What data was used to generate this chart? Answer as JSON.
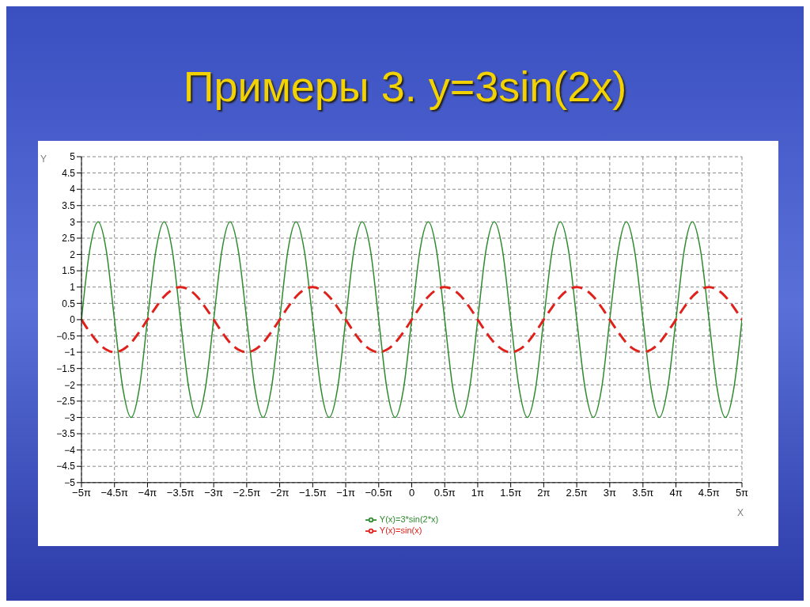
{
  "chart_data": {
    "type": "line",
    "title": "Примеры 3. y=3sin(2x)",
    "xlabel": "X",
    "ylabel": "Y",
    "x": [
      -15.71,
      -15.32,
      -14.92,
      -14.53,
      -14.14,
      -13.74,
      -13.35,
      -12.96,
      -12.57,
      -12.17,
      -11.78,
      -11.39,
      -11.0,
      -10.6,
      -10.21,
      -9.82,
      -9.42,
      -9.03,
      -8.64,
      -8.25,
      -7.85,
      -7.46,
      -7.07,
      -6.68,
      -6.28,
      -5.89,
      -5.5,
      -5.11,
      -4.71,
      -4.32,
      -3.93,
      -3.53,
      -3.14,
      -2.75,
      -2.36,
      -1.96,
      -1.57,
      -1.18,
      -0.79,
      -0.39,
      0,
      0.39,
      0.79,
      1.18,
      1.57,
      1.96,
      2.36,
      2.75,
      3.14,
      3.53,
      3.93,
      4.32,
      4.71,
      5.11,
      5.5,
      5.89,
      6.28,
      6.68,
      7.07,
      7.46,
      7.85,
      8.25,
      8.64,
      9.03,
      9.42,
      9.82,
      10.21,
      10.6,
      11.0,
      11.39,
      11.78,
      12.17,
      12.57,
      12.96,
      13.35,
      13.74,
      14.14,
      14.53,
      14.92,
      15.32,
      15.71
    ],
    "series": [
      {
        "name": "Y(x)=3*sin(2*x)",
        "color": "#2e8b2e",
        "line_style": "solid",
        "values": [
          0,
          2.12,
          3,
          2.12,
          0,
          -2.12,
          -3,
          -2.12,
          0,
          2.12,
          3,
          2.12,
          0,
          -2.12,
          -3,
          -2.12,
          0,
          2.12,
          3,
          2.12,
          0,
          -2.12,
          -3,
          -2.12,
          0,
          2.12,
          3,
          2.12,
          0,
          -2.12,
          -3,
          -2.12,
          0,
          2.12,
          3,
          2.12,
          0,
          -2.12,
          -3,
          -2.12,
          0,
          2.12,
          3,
          2.12,
          0,
          -2.12,
          -3,
          -2.12,
          0,
          2.12,
          3,
          2.12,
          0,
          -2.12,
          -3,
          -2.12,
          0,
          2.12,
          3,
          2.12,
          0,
          -2.12,
          -3,
          -2.12,
          0,
          2.12,
          3,
          2.12,
          0,
          -2.12,
          -3,
          -2.12,
          0,
          2.12,
          3,
          2.12,
          0,
          -2.12,
          -3,
          -2.12,
          0
        ]
      },
      {
        "name": "Y(x)=sin(x)",
        "color": "#e0201a",
        "line_style": "dashed",
        "values": [
          0,
          -0.38,
          -0.71,
          -0.92,
          -1,
          -0.92,
          -0.71,
          -0.38,
          0,
          0.38,
          0.71,
          0.92,
          1,
          0.92,
          0.71,
          0.38,
          0,
          -0.38,
          -0.71,
          -0.92,
          -1,
          -0.92,
          -0.71,
          -0.38,
          0,
          0.38,
          0.71,
          0.92,
          1,
          0.92,
          0.71,
          0.38,
          0,
          -0.38,
          -0.71,
          -0.92,
          -1,
          -0.92,
          -0.71,
          -0.38,
          0,
          0.38,
          0.71,
          0.92,
          1,
          0.92,
          0.71,
          0.38,
          0,
          -0.38,
          -0.71,
          -0.92,
          -1,
          -0.92,
          -0.71,
          -0.38,
          0,
          0.38,
          0.71,
          0.92,
          1,
          0.92,
          0.71,
          0.38,
          0,
          -0.38,
          -0.71,
          -0.92,
          -1,
          -0.92,
          -0.71,
          -0.38,
          0,
          0.38,
          0.71,
          0.92,
          1,
          0.92,
          0.71,
          0.38,
          0
        ]
      }
    ],
    "xlim": [
      -15.71,
      15.71
    ],
    "xticks": [
      {
        "value": -15.71,
        "label": "−5π"
      },
      {
        "value": -14.14,
        "label": "−4.5π"
      },
      {
        "value": -12.57,
        "label": "−4π"
      },
      {
        "value": -11.0,
        "label": "−3.5π"
      },
      {
        "value": -9.42,
        "label": "−3π"
      },
      {
        "value": -7.85,
        "label": "−2.5π"
      },
      {
        "value": -6.28,
        "label": "−2π"
      },
      {
        "value": -4.71,
        "label": "−1.5π"
      },
      {
        "value": -3.14,
        "label": "−1π"
      },
      {
        "value": -1.57,
        "label": "−0.5π"
      },
      {
        "value": 0,
        "label": "0"
      },
      {
        "value": 1.57,
        "label": "0.5π"
      },
      {
        "value": 3.14,
        "label": "1π"
      },
      {
        "value": 4.71,
        "label": "1.5π"
      },
      {
        "value": 6.28,
        "label": "2π"
      },
      {
        "value": 7.85,
        "label": "2.5π"
      },
      {
        "value": 9.42,
        "label": "3π"
      },
      {
        "value": 11.0,
        "label": "3.5π"
      },
      {
        "value": 12.57,
        "label": "4π"
      },
      {
        "value": 14.14,
        "label": "4.5π"
      },
      {
        "value": 15.71,
        "label": "5π"
      }
    ],
    "ylim": [
      -5,
      5
    ],
    "yticks": [
      -5,
      -4.5,
      -4,
      -3.5,
      -3,
      -2.5,
      -2,
      -1.5,
      -1,
      -0.5,
      0,
      0.5,
      1,
      1.5,
      2,
      2.5,
      3,
      3.5,
      4,
      4.5,
      5
    ],
    "grid": true,
    "legend": "bottom",
    "marker": "none"
  }
}
